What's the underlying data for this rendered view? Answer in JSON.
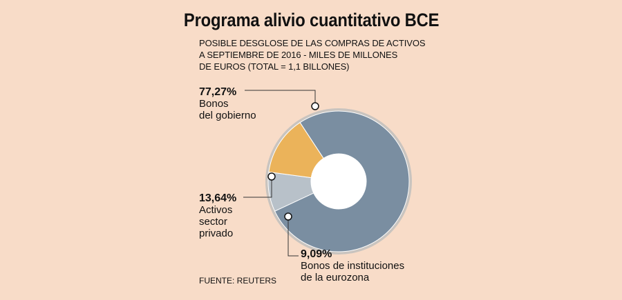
{
  "title": "Programa alivio cuantitativo BCE",
  "subtitle_lines": [
    "POSIBLE DESGLOSE DE LAS COMPRAS DE ACTIVOS",
    "A SEPTIEMBRE DE 2016 - MILES DE MILLONES",
    "DE EUROS (TOTAL = 1,1 BILLONES)"
  ],
  "source": "FUENTE: REUTERS",
  "colors": {
    "background": "#f8dcc8",
    "ring": "#c9c4bf"
  },
  "chart_data": {
    "type": "pie",
    "donut": true,
    "slices": [
      {
        "pct_label": "77,27%",
        "label_lines": [
          "Bonos",
          "del gobierno"
        ],
        "value": 77.27,
        "color": "#7a8ea1"
      },
      {
        "pct_label": "9,09%",
        "label_lines": [
          "Bonos de instituciones",
          "de la eurozona"
        ],
        "value": 9.09,
        "color": "#b8c1c9"
      },
      {
        "pct_label": "13,64%",
        "label_lines": [
          "Activos",
          "sector",
          "privado"
        ],
        "value": 13.64,
        "color": "#ebb35a"
      }
    ]
  }
}
